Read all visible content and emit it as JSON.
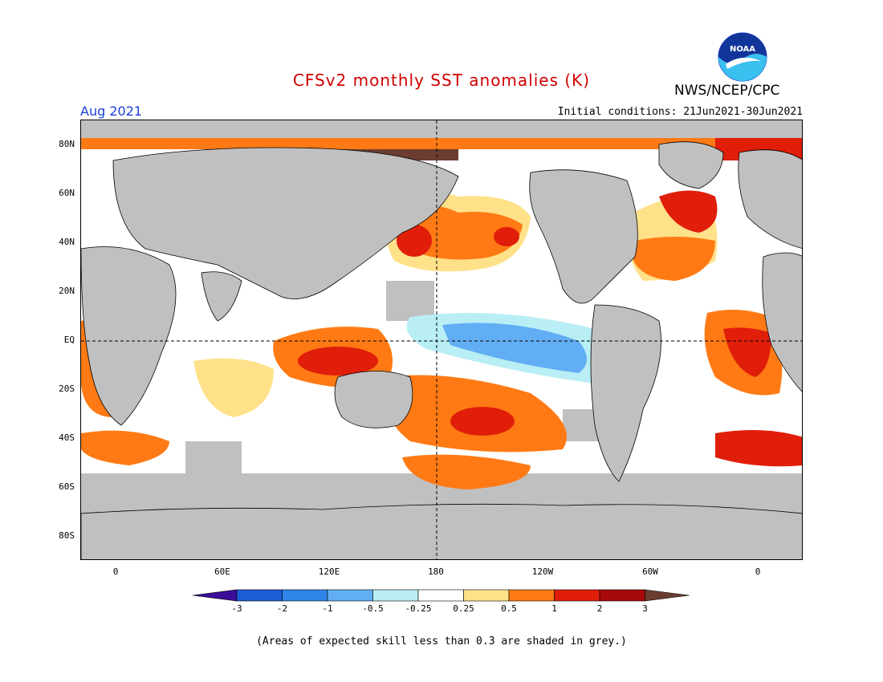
{
  "title": "CFSv2 monthly SST anomalies (K)",
  "agency": "NWS/NCEP/CPC",
  "valid_month": "Aug 2021",
  "initial_conditions": "Initial conditions: 21Jun2021-30Jun2021",
  "lat_labels": [
    "80N",
    "60N",
    "40N",
    "20N",
    "EQ",
    "20S",
    "40S",
    "60S",
    "80S"
  ],
  "lon_labels": [
    "0",
    "60E",
    "120E",
    "180",
    "120W",
    "60W",
    "0"
  ],
  "colorbar": {
    "levels": [
      "-3",
      "-2",
      "-1",
      "-0.5",
      "-0.25",
      "0.25",
      "0.5",
      "1",
      "2",
      "3"
    ],
    "colors": [
      "#3b0d9b",
      "#1c5cd4",
      "#2f86e8",
      "#62aef5",
      "#b9eef5",
      "#ffffff",
      "#ffe18a",
      "#ff7a14",
      "#e01e0a",
      "#a80a0a",
      "#6b3d30"
    ]
  },
  "colors": {
    "land": "#c0c0c0",
    "low_skill_grey": "#c0c0c0",
    "title": "#d00000",
    "date_label": "#1a3fd8"
  },
  "logo_text": "NOAA",
  "caption": "(Areas of expected skill less than 0.3 are shaded in grey.)"
}
